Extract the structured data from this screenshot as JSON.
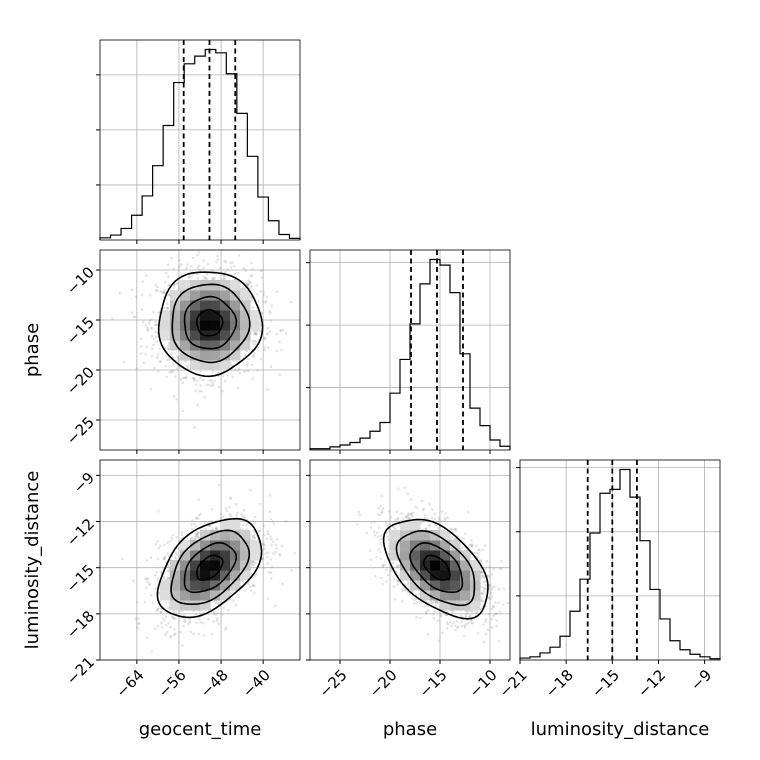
{
  "chart_data": {
    "type": "corner",
    "title": "",
    "grid": true,
    "parameters": [
      {
        "key": "geocent_time",
        "label": "geocent_time",
        "range": [
          -71,
          -33
        ],
        "ticks": [
          -64,
          -56,
          -48,
          -40
        ],
        "tick_labels": [
          "−64",
          "−56",
          "−48",
          "−40"
        ],
        "quantiles": [
          -55.1,
          -50.2,
          -45.3
        ],
        "histogram": {
          "bin_edges": [
            -71,
            -69,
            -67,
            -65,
            -63,
            -61,
            -59,
            -57,
            -55,
            -53,
            -51,
            -49,
            -47,
            -45,
            -43,
            -41,
            -39,
            -37,
            -35,
            -33
          ],
          "counts": [
            0.4,
            0.9,
            2.1,
            4.5,
            8.0,
            13.5,
            20.8,
            28.6,
            32.0,
            33.4,
            34.6,
            34.0,
            30.2,
            23.0,
            15.2,
            7.8,
            3.5,
            1.0,
            0.3
          ],
          "y_ticks": [
            10,
            20,
            30
          ],
          "y_max": 34.6
        }
      },
      {
        "key": "phase",
        "label": "phase",
        "range": [
          -28,
          -8
        ],
        "ticks": [
          -25,
          -20,
          -15,
          -10
        ],
        "tick_labels": [
          "−25",
          "−20",
          "−15",
          "−10"
        ],
        "quantiles": [
          -17.9,
          -15.3,
          -12.7
        ],
        "histogram": {
          "bin_edges": [
            -28,
            -27,
            -26,
            -25,
            -24,
            -23,
            -22,
            -21,
            -20,
            -19,
            -18,
            -17,
            -16,
            -15,
            -14,
            -13,
            -12,
            -11,
            -10,
            -9,
            -8
          ],
          "counts": [
            0.2,
            0.2,
            0.5,
            0.8,
            1.2,
            1.9,
            3.0,
            4.4,
            9.1,
            14.5,
            20.2,
            26.6,
            30.5,
            29.6,
            25.2,
            15.4,
            6.7,
            3.9,
            1.6,
            0.6
          ],
          "y_ticks": [
            10,
            20,
            30
          ],
          "y_max": 30.5
        }
      },
      {
        "key": "luminosity_distance",
        "label": "luminosity_distance",
        "range": [
          -21,
          -8
        ],
        "ticks": [
          -21,
          -18,
          -15,
          -12,
          -9
        ],
        "tick_labels": [
          "−21",
          "−18",
          "−15",
          "−12",
          "−9"
        ],
        "quantiles": [
          -16.6,
          -15.0,
          -13.4
        ],
        "histogram": {
          "bin_edges": [
            -21,
            -20.35,
            -19.7,
            -19.05,
            -18.4,
            -17.75,
            -17.1,
            -16.45,
            -15.8,
            -15.15,
            -14.5,
            -13.85,
            -13.2,
            -12.55,
            -11.9,
            -11.25,
            -10.6,
            -9.95,
            -9.3,
            -8.65,
            -8
          ],
          "counts": [
            0.3,
            0.5,
            1.1,
            2.0,
            3.7,
            7.6,
            12.6,
            19.8,
            26.0,
            26.6,
            29.7,
            25.4,
            18.6,
            11.0,
            6.4,
            3.0,
            1.6,
            0.9,
            0.5,
            0.2
          ],
          "y_ticks": [
            10,
            20,
            30
          ],
          "y_max": 29.7
        }
      }
    ],
    "pairs": [
      {
        "x": "geocent_time",
        "y": "phase",
        "y_axis_ticks": [
          -25,
          -20,
          -15,
          -10
        ],
        "y_tick_labels": [
          "−25",
          "−20",
          "−15",
          "−10"
        ],
        "center": [
          -50.2,
          -15.3
        ],
        "sigma": [
          4.9,
          2.6
        ],
        "correlation": 0.0
      },
      {
        "x": "geocent_time",
        "y": "luminosity_distance",
        "y_axis_ticks": [
          -21,
          -18,
          -15,
          -12,
          -9
        ],
        "y_tick_labels": [
          "−21",
          "−18",
          "−15",
          "−12",
          "−9"
        ],
        "center": [
          -50.2,
          -15.0
        ],
        "sigma": [
          4.9,
          1.6
        ],
        "correlation": 0.45
      },
      {
        "x": "phase",
        "y": "luminosity_distance",
        "y_axis_ticks": [
          -21,
          -18,
          -15,
          -12,
          -9
        ],
        "y_tick_labels": [
          "−21",
          "−18",
          "−15",
          "−12",
          "−9"
        ],
        "center": [
          -15.3,
          -15.0
        ],
        "sigma": [
          2.6,
          1.6
        ],
        "correlation": -0.5
      }
    ],
    "contour_levels_sigma": [
      0.5,
      1.0,
      1.5,
      2.0
    ]
  }
}
